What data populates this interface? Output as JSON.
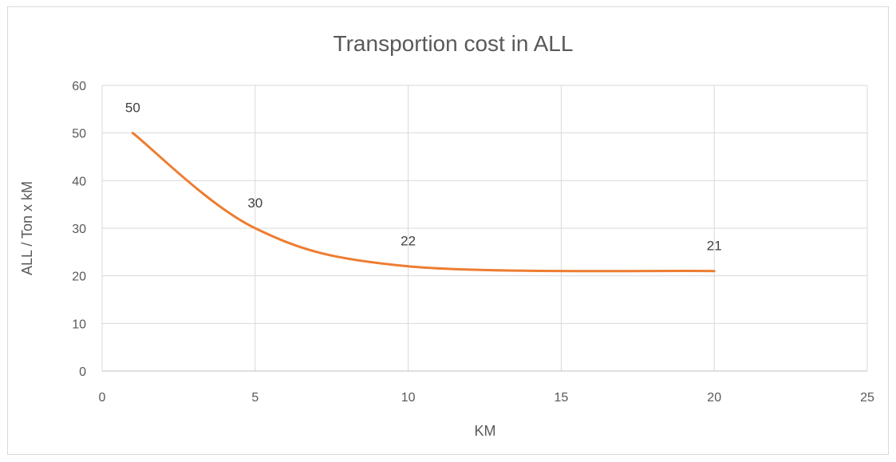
{
  "chart_data": {
    "type": "line",
    "title": "Transportion cost in ALL",
    "xlabel": "KM",
    "ylabel": "ALL  / Ton x kM",
    "xlim": [
      0,
      25
    ],
    "ylim": [
      0,
      60
    ],
    "x_ticks": [
      "0",
      "5",
      "10",
      "15",
      "20",
      "25"
    ],
    "y_ticks": [
      "0",
      "10",
      "20",
      "30",
      "40",
      "50",
      "60"
    ],
    "grid": true,
    "smooth": true,
    "series": [
      {
        "x": [
          1,
          5,
          10,
          20
        ],
        "values": [
          50,
          30,
          22,
          21
        ],
        "data_labels": [
          "50",
          "30",
          "22",
          "21"
        ],
        "color": "#ed7d31"
      }
    ]
  }
}
